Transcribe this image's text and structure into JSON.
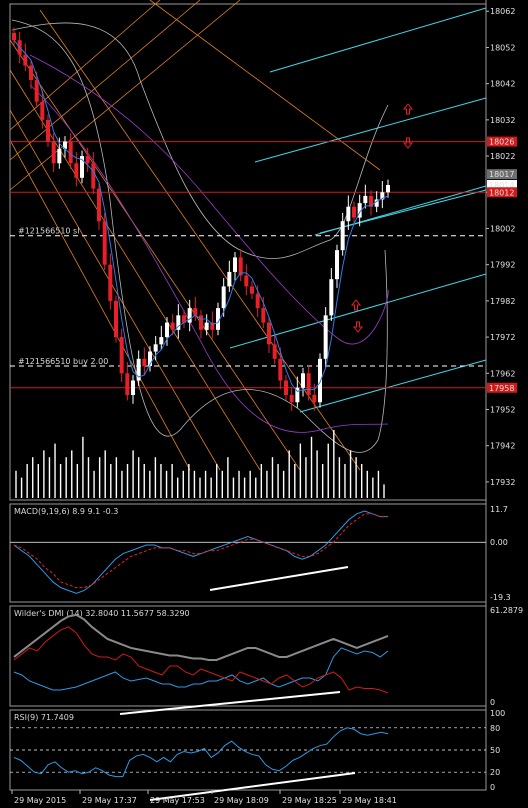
{
  "colors": {
    "background": "#000000",
    "grid": "#2a2a2a",
    "axis_text": "#e6e6e6",
    "bull": "#ffffff",
    "bear": "#e8202a",
    "level_line": "#d11a1a",
    "order_line": "#ffffff",
    "channel": "#3fd6e6",
    "fib_fan": "#e08020",
    "bollinger": "#b8b8b8",
    "envelope": "#9a3fd0",
    "ma_fast": "#2c7be8",
    "volume": "#ffffff",
    "macd_main": "#2c9ae8",
    "macd_signal": "#e8202a",
    "dmi_adx": "#8a8a8a",
    "dmi_plus": "#2c9ae8",
    "dmi_minus": "#d11a1a",
    "rsi": "#2c9ae8",
    "trendline": "#ffffff"
  },
  "chart_data": [
    {
      "type": "candlestick",
      "panel": "price",
      "ylim": [
        17927,
        18064
      ],
      "y_ticks": [
        "18062",
        "18052",
        "18042",
        "18032",
        "18022",
        "18012",
        "18002",
        "17992",
        "17982",
        "17972",
        "17962",
        "17952",
        "17942",
        "17932"
      ],
      "price_boxes": [
        {
          "label": "18026",
          "value": 18026,
          "style": "red"
        },
        {
          "label": "18017",
          "value": 18017,
          "style": "gray"
        },
        {
          "label": "18014",
          "value": 18014,
          "style": "white"
        },
        {
          "label": "18012",
          "value": 18012,
          "style": "red"
        },
        {
          "label": "17958",
          "value": 17958,
          "style": "red"
        }
      ],
      "levels": [
        {
          "value": 18026,
          "style": "solid-red"
        },
        {
          "value": 18012,
          "style": "solid-red"
        },
        {
          "value": 17958,
          "style": "solid-red"
        },
        {
          "value": 18000,
          "style": "dashed-white",
          "label": "#121566510 sl"
        },
        {
          "value": 17964,
          "style": "dashed-white",
          "label": "#121566510 buy 2.00"
        }
      ],
      "closes": [
        18054,
        18050,
        18047,
        18043,
        18037,
        18032,
        18026,
        18020,
        18024,
        18026,
        18020,
        18016,
        18022,
        18020,
        18013,
        18004,
        17992,
        17982,
        17972,
        17962,
        17956,
        17960,
        17966,
        17964,
        17968,
        17970,
        17972,
        17976,
        17974,
        17978,
        17976,
        17980,
        17978,
        17974,
        17976,
        17974,
        17980,
        17986,
        17990,
        17994,
        17989,
        17986,
        17984,
        17980,
        17976,
        17970,
        17966,
        17960,
        17956,
        17954,
        17958,
        17962,
        17956,
        17954,
        17966,
        17978,
        17988,
        17996,
        18004,
        18008,
        18005,
        18009,
        18011,
        18008,
        18010,
        18012,
        18014
      ]
    },
    {
      "type": "bar",
      "panel": "volume",
      "values": [
        0.4,
        0.3,
        0.5,
        0.6,
        0.5,
        0.7,
        0.6,
        0.8,
        0.5,
        0.6,
        0.7,
        0.5,
        0.9,
        0.6,
        0.4,
        0.6,
        0.7,
        0.5,
        0.6,
        0.4,
        0.5,
        0.7,
        0.6,
        0.5,
        0.4,
        0.6,
        0.5,
        0.4,
        0.5,
        0.3,
        0.4,
        0.5,
        0.4,
        0.3,
        0.4,
        0.3,
        0.5,
        0.4,
        0.6,
        0.3,
        0.4,
        0.3,
        0.4,
        0.3,
        0.5,
        0.4,
        0.6,
        0.5,
        0.4,
        0.7,
        0.5,
        0.8,
        0.6,
        0.9,
        0.7,
        0.5,
        0.8,
        1.0,
        0.6,
        0.5,
        0.7,
        0.6,
        0.5,
        0.4,
        0.3,
        0.4,
        0.2
      ]
    },
    {
      "type": "line",
      "panel": "macd",
      "title": "MACD(9,19,6) 8.9 9.1 -0.3",
      "ylim": [
        -19.3,
        11.7
      ],
      "y_ticks": [
        "11.7",
        "0.00",
        "-19.3"
      ],
      "series": [
        {
          "name": "main",
          "values": [
            -1,
            -3,
            -5,
            -8,
            -11,
            -14,
            -16,
            -17,
            -18,
            -17,
            -15,
            -12,
            -9,
            -6,
            -4,
            -3,
            -2,
            -1,
            -1,
            -2,
            -2,
            -3,
            -4,
            -5,
            -4,
            -3,
            -2,
            -1,
            0,
            1,
            2,
            1,
            0,
            -1,
            -2,
            -3,
            -5,
            -6,
            -5,
            -3,
            -1,
            2,
            5,
            8,
            10,
            11,
            10,
            9,
            9
          ]
        },
        {
          "name": "signal",
          "values": [
            -1,
            -2,
            -4,
            -6,
            -9,
            -11,
            -14,
            -15,
            -16,
            -16,
            -15,
            -13,
            -11,
            -9,
            -7,
            -5,
            -4,
            -3,
            -2,
            -2,
            -2,
            -3,
            -3,
            -4,
            -4,
            -3,
            -3,
            -2,
            -1,
            0,
            1,
            1,
            0,
            -1,
            -2,
            -3,
            -4,
            -5,
            -5,
            -4,
            -2,
            0,
            3,
            6,
            8,
            10,
            10,
            9,
            9
          ]
        }
      ]
    },
    {
      "type": "line",
      "panel": "dmi",
      "title": "Wilder's DMI (14) 32.8040 11.5677 58.3290",
      "ylim": [
        0,
        61.2879
      ],
      "y_ticks": [
        "61.2879",
        "0"
      ],
      "series": [
        {
          "name": "adx",
          "values": [
            30,
            34,
            38,
            42,
            46,
            50,
            54,
            57,
            58,
            55,
            50,
            46,
            42,
            40,
            38,
            36,
            35,
            34,
            33,
            32,
            31,
            31,
            30,
            29,
            29,
            28,
            28,
            30,
            32,
            34,
            36,
            36,
            34,
            32,
            30,
            30,
            32,
            34,
            36,
            38,
            40,
            42,
            40,
            38,
            36,
            38,
            40,
            42,
            44
          ]
        },
        {
          "name": "plus_di",
          "values": [
            20,
            18,
            14,
            12,
            10,
            8,
            8,
            9,
            10,
            12,
            14,
            16,
            18,
            20,
            16,
            14,
            15,
            16,
            14,
            12,
            12,
            10,
            10,
            12,
            12,
            14,
            14,
            16,
            18,
            14,
            12,
            14,
            16,
            12,
            10,
            12,
            14,
            16,
            16,
            14,
            18,
            30,
            36,
            34,
            32,
            34,
            33,
            30,
            34
          ]
        },
        {
          "name": "minus_di",
          "values": [
            28,
            32,
            36,
            34,
            40,
            44,
            48,
            50,
            46,
            38,
            32,
            30,
            30,
            28,
            32,
            30,
            24,
            22,
            20,
            18,
            24,
            24,
            20,
            18,
            22,
            20,
            18,
            16,
            14,
            20,
            18,
            16,
            14,
            12,
            16,
            18,
            14,
            10,
            12,
            16,
            18,
            20,
            16,
            8,
            10,
            9,
            9,
            8,
            6
          ]
        }
      ]
    },
    {
      "type": "line",
      "panel": "rsi",
      "title": "RSI(9) 71.7409",
      "ylim": [
        0,
        100
      ],
      "y_ticks": [
        "100",
        "80",
        "50",
        "20",
        "0"
      ],
      "series": [
        {
          "name": "rsi",
          "values": [
            40,
            36,
            28,
            20,
            18,
            30,
            34,
            26,
            20,
            22,
            18,
            20,
            26,
            22,
            16,
            14,
            14,
            36,
            42,
            44,
            40,
            34,
            40,
            34,
            44,
            48,
            46,
            48,
            52,
            40,
            46,
            56,
            62,
            54,
            48,
            44,
            42,
            30,
            24,
            22,
            28,
            36,
            40,
            46,
            52,
            56,
            58,
            68,
            76,
            80,
            78,
            72,
            70,
            72,
            74,
            72
          ]
        }
      ]
    }
  ],
  "x_axis": {
    "labels": [
      "29 May 2015",
      "29 May 17:37",
      "29 May 17:53",
      "29 May 18:09",
      "29 May 18:25",
      "29 May 18:41"
    ]
  }
}
